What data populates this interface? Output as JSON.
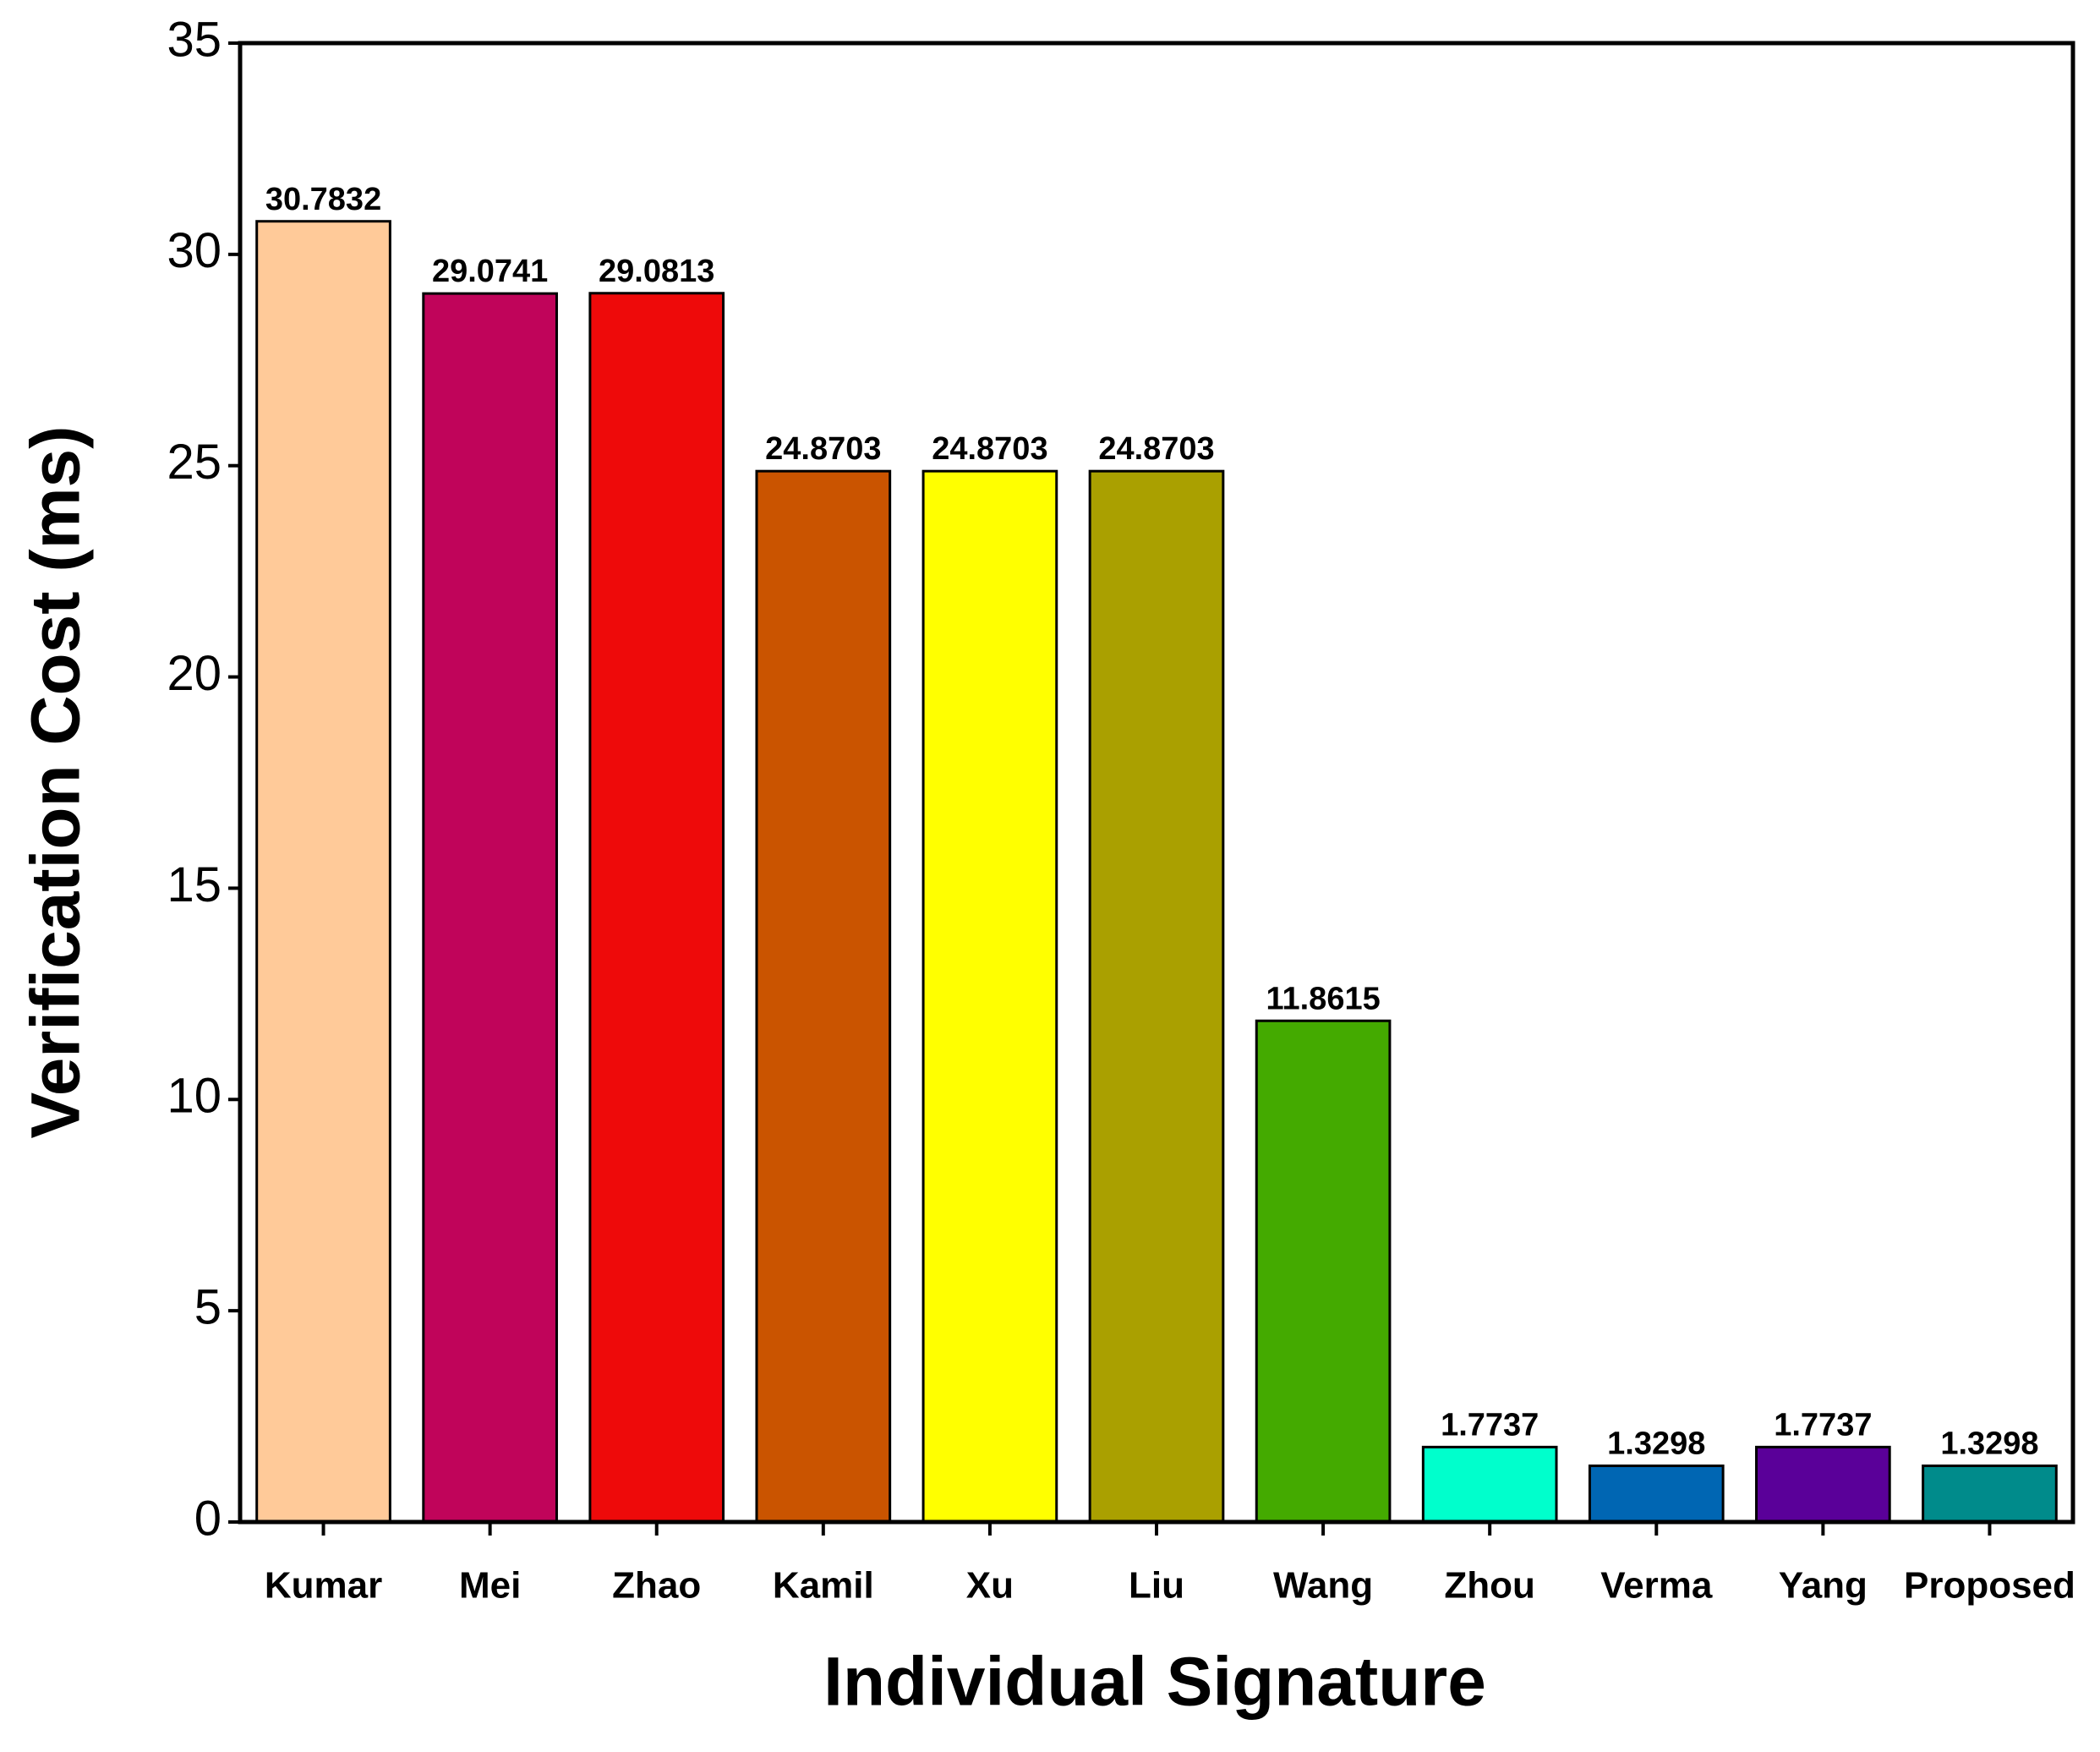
{
  "chart_data": {
    "type": "bar",
    "x_label": "Individual Signature",
    "y_label": "Verification Cost (ms)",
    "categories": [
      "Kumar",
      "Mei",
      "Zhao",
      "Kamil",
      "Xu",
      "Liu",
      "Wang",
      "Zhou",
      "Verma",
      "Yang",
      "Proposed"
    ],
    "values": [
      30.7832,
      29.0741,
      29.0813,
      24.8703,
      24.8703,
      24.8703,
      11.8615,
      1.7737,
      1.3298,
      1.7737,
      1.3298
    ],
    "colors": [
      "#FFCA99",
      "#C0045A",
      "#EE0A0A",
      "#CA5400",
      "#FFFF00",
      "#AAA000",
      "#44AA00",
      "#00FFCC",
      "#0066B3",
      "#5A0099",
      "#008B8B"
    ],
    "ylim": [
      0,
      35
    ],
    "yticks": [
      0,
      5,
      10,
      15,
      20,
      25,
      30,
      35
    ],
    "grid": false
  }
}
